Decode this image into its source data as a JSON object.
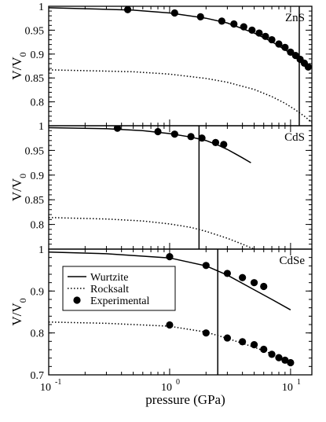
{
  "figure": {
    "xlabel": "pressure (GPa)",
    "ylabel": "V/V",
    "ylabel_sub": "0",
    "x_tick_labels": [
      {
        "base": "10",
        "exp": "-1",
        "value": 0.1
      },
      {
        "base": "10",
        "exp": "0",
        "value": 1
      },
      {
        "base": "10",
        "exp": "1",
        "value": 10
      }
    ],
    "legend": {
      "entries": [
        {
          "label": "Wurtzite",
          "style": "solid-line"
        },
        {
          "label": "Rocksalt",
          "style": "dotted-line"
        },
        {
          "label": "Experimental",
          "style": "filled-circle"
        }
      ]
    },
    "colors": {
      "ink": "#000000",
      "background": "#ffffff"
    }
  },
  "chart_data": [
    {
      "type": "line",
      "panel_label": "ZnS",
      "x_scale": "log",
      "xlim": [
        0.1,
        15
      ],
      "ylim": [
        0.75,
        1.0
      ],
      "ytick_labels": [
        "0.8",
        "0.85",
        "0.9",
        "0.95",
        "1"
      ],
      "ytick_values": [
        0.8,
        0.85,
        0.9,
        0.95,
        1.0
      ],
      "transition_pressure": 11.8,
      "series": [
        {
          "name": "Wurtzite",
          "style": "solid",
          "x": [
            0.1,
            0.5,
            1,
            2,
            3,
            5,
            7,
            9,
            11,
            13,
            15
          ],
          "y": [
            0.997,
            0.992,
            0.986,
            0.975,
            0.965,
            0.944,
            0.926,
            0.909,
            0.895,
            0.882,
            0.87
          ]
        },
        {
          "name": "Rocksalt",
          "style": "dotted",
          "x": [
            0.1,
            0.5,
            1,
            2,
            3,
            5,
            7,
            9,
            11,
            13,
            15
          ],
          "y": [
            0.867,
            0.863,
            0.858,
            0.849,
            0.841,
            0.826,
            0.811,
            0.797,
            0.783,
            0.77,
            0.757
          ]
        },
        {
          "name": "Experimental",
          "style": "marker",
          "x": [
            0.45,
            1.1,
            1.8,
            2.7,
            3.4,
            4.1,
            4.8,
            5.5,
            6.2,
            7.0,
            8.0,
            9.0,
            10.0,
            11.0,
            12.0,
            13.0,
            14.0
          ],
          "y": [
            0.993,
            0.986,
            0.978,
            0.969,
            0.963,
            0.957,
            0.95,
            0.944,
            0.937,
            0.93,
            0.921,
            0.914,
            0.904,
            0.897,
            0.889,
            0.881,
            0.873
          ]
        }
      ]
    },
    {
      "type": "line",
      "panel_label": "CdS",
      "x_scale": "log",
      "xlim": [
        0.1,
        15
      ],
      "ylim": [
        0.75,
        1.0
      ],
      "ytick_labels": [
        "0.8",
        "0.85",
        "0.9",
        "0.95",
        "1"
      ],
      "ytick_values": [
        0.8,
        0.85,
        0.9,
        0.95,
        1.0
      ],
      "transition_pressure": 1.75,
      "series": [
        {
          "name": "Wurtzite",
          "style": "solid",
          "x": [
            0.1,
            0.3,
            0.6,
            1,
            1.5,
            2,
            2.5,
            3,
            3.5,
            4,
            4.7
          ],
          "y": [
            0.996,
            0.994,
            0.99,
            0.984,
            0.977,
            0.97,
            0.961,
            0.952,
            0.943,
            0.935,
            0.925
          ]
        },
        {
          "name": "Rocksalt",
          "style": "dotted",
          "x": [
            0.1,
            0.3,
            0.6,
            1,
            1.5,
            2,
            3,
            4,
            5,
            6
          ],
          "y": [
            0.814,
            0.811,
            0.807,
            0.801,
            0.794,
            0.786,
            0.772,
            0.76,
            0.75,
            0.741
          ]
        },
        {
          "name": "Experimental",
          "style": "marker",
          "x": [
            0.37,
            0.8,
            1.1,
            1.5,
            1.85,
            2.4,
            2.8
          ],
          "y": [
            0.995,
            0.988,
            0.983,
            0.978,
            0.975,
            0.966,
            0.962
          ]
        }
      ]
    },
    {
      "type": "line",
      "panel_label": "CdSe",
      "x_scale": "log",
      "xlim": [
        0.1,
        15
      ],
      "ylim": [
        0.7,
        1.0
      ],
      "ytick_labels": [
        "0.7",
        "0.8",
        "0.9",
        "1"
      ],
      "ytick_values": [
        0.7,
        0.8,
        0.9,
        1.0
      ],
      "transition_pressure": 2.5,
      "series": [
        {
          "name": "Wurtzite",
          "style": "solid",
          "x": [
            0.1,
            0.3,
            1,
            2,
            3,
            5,
            7,
            10
          ],
          "y": [
            0.993,
            0.989,
            0.979,
            0.96,
            0.938,
            0.903,
            0.88,
            0.855
          ]
        },
        {
          "name": "Rocksalt",
          "style": "dotted",
          "x": [
            0.1,
            0.3,
            1,
            2,
            3,
            5,
            7,
            10
          ],
          "y": [
            0.826,
            0.823,
            0.816,
            0.802,
            0.787,
            0.766,
            0.75,
            0.73
          ]
        },
        {
          "name": "Experimental",
          "style": "marker",
          "x": [
            1.0,
            2.0,
            3.0,
            4.0,
            5.0,
            6.0
          ],
          "y": [
            0.982,
            0.961,
            0.942,
            0.932,
            0.92,
            0.911
          ]
        },
        {
          "name": "Experimental",
          "style": "marker",
          "x": [
            1.0,
            2.0,
            3.0,
            4.0,
            5.0,
            6.0,
            7.0,
            8.0,
            9.0,
            10.0
          ],
          "y": [
            0.819,
            0.8,
            0.788,
            0.779,
            0.772,
            0.761,
            0.749,
            0.741,
            0.735,
            0.729
          ]
        }
      ]
    }
  ]
}
